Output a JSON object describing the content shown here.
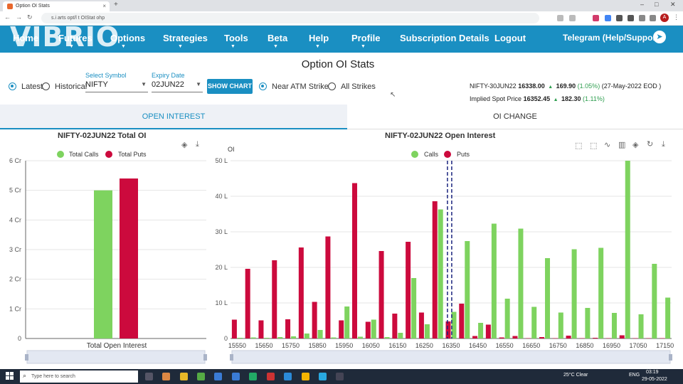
{
  "browser": {
    "tab_title": "Option OI Stats",
    "url_text": "s.i arts opt/l t OIStat ohp",
    "new_tab": "+",
    "close": "×",
    "minimize": "–",
    "maximize": "□",
    "win_close": "✕",
    "avatar": "A"
  },
  "navbar": {
    "logo": "VIBRIO",
    "items": [
      "Home",
      "Futures",
      "Options",
      "Strategies",
      "Tools",
      "Beta",
      "Help",
      "Profile",
      "Subscription Details",
      "Logout",
      "Telegram (Help/Support)"
    ],
    "accent": "#1a8fc2"
  },
  "page": {
    "title": "Option OI Stats"
  },
  "controls": {
    "latest": "Latest",
    "historical": "Historical",
    "select_symbol_label": "Select Symbol",
    "symbol": "NIFTY",
    "expiry_label": "Expiry Date",
    "expiry": "02JUN22",
    "show_chart": "SHOW CHART",
    "near_atm": "Near ATM Strikes",
    "all_strikes": "All Strikes"
  },
  "info": {
    "fut_name": "NIFTY-30JUN22",
    "fut_price": "16338.00",
    "fut_change": "169.90",
    "fut_pct": "(1.05%)",
    "fut_date": "(27-May-2022 EOD )",
    "spot_label": "Implied Spot Price",
    "spot_price": "16352.45",
    "spot_change": "182.30",
    "spot_pct": "(1.11%)"
  },
  "tabs": {
    "oi": "OPEN INTEREST",
    "oi_change": "OI CHANGE"
  },
  "colors": {
    "calls": "#7ed35f",
    "puts": "#cc0a3d",
    "grid": "#e6e6e6"
  },
  "left_chart": {
    "title": "NIFTY-02JUN22 Total OI",
    "legend_calls": "Total Calls",
    "legend_puts": "Total Puts",
    "category": "Total Open Interest",
    "y_ticks": [
      "0",
      "1 Cr",
      "2 Cr",
      "3 Cr",
      "4 Cr",
      "5 Cr",
      "6 Cr"
    ]
  },
  "right_chart": {
    "title": "NIFTY-02JUN22 Open Interest",
    "ylabel": "OI",
    "legend_calls": "Calls",
    "legend_puts": "Puts",
    "y_ticks": [
      "0",
      "10 L",
      "20 L",
      "30 L",
      "40 L",
      "50 L"
    ],
    "x_ticks": [
      "15550",
      "15650",
      "15750",
      "15850",
      "15950",
      "16050",
      "16150",
      "16250",
      "16350",
      "16450",
      "16550",
      "16650",
      "16750",
      "16850",
      "16950",
      "17050",
      "17150"
    ]
  },
  "chart_data": [
    {
      "type": "bar",
      "title": "NIFTY-02JUN22 Total OI",
      "categories": [
        "Total Open Interest"
      ],
      "series": [
        {
          "name": "Total Calls",
          "values": [
            5.0
          ]
        },
        {
          "name": "Total Puts",
          "values": [
            5.4
          ]
        }
      ],
      "ylabel": "",
      "unit": "Cr",
      "ylim": [
        0,
        6
      ],
      "grid": true,
      "legend": "top-center"
    },
    {
      "type": "bar",
      "title": "NIFTY-02JUN22 Open Interest",
      "ylabel": "OI",
      "unit": "L",
      "ylim": [
        0,
        50
      ],
      "grid": true,
      "legend": "top-center",
      "spot_marker": 16352.45,
      "x": [
        15550,
        15600,
        15650,
        15700,
        15750,
        15800,
        15850,
        15900,
        15950,
        16000,
        16050,
        16100,
        16150,
        16200,
        16250,
        16300,
        16350,
        16400,
        16450,
        16500,
        16550,
        16600,
        16650,
        16700,
        16750,
        16800,
        16850,
        16900,
        16950,
        17000,
        17050,
        17100,
        17150
      ],
      "series": [
        {
          "name": "Puts",
          "values": [
            5.3,
            19.6,
            5.1,
            22.0,
            5.4,
            25.6,
            10.3,
            28.7,
            5.1,
            43.7,
            4.7,
            24.6,
            7.0,
            27.2,
            7.3,
            38.6,
            4.8,
            9.8,
            0.7,
            3.9,
            0.3,
            0.7,
            0.1,
            0.4,
            0.1,
            0.8,
            0.1,
            0.2,
            0.1,
            0.9,
            0.1,
            0.1,
            0.1
          ]
        },
        {
          "name": "Calls",
          "values": [
            0.2,
            0.3,
            0.2,
            0.4,
            0.6,
            1.4,
            2.4,
            0.3,
            9.0,
            0.5,
            5.3,
            0.4,
            1.6,
            17.0,
            4.0,
            36.3,
            7.5,
            27.4,
            4.4,
            32.3,
            11.2,
            30.9,
            8.9,
            22.6,
            7.3,
            25.1,
            8.6,
            25.5,
            7.2,
            50.0,
            6.8,
            21.0,
            11.5
          ]
        }
      ]
    }
  ],
  "taskbar": {
    "search": "Type here to search",
    "weather": "25°C Clear",
    "lang": "ENG",
    "time": "03:19",
    "date": "29-05-2022"
  }
}
